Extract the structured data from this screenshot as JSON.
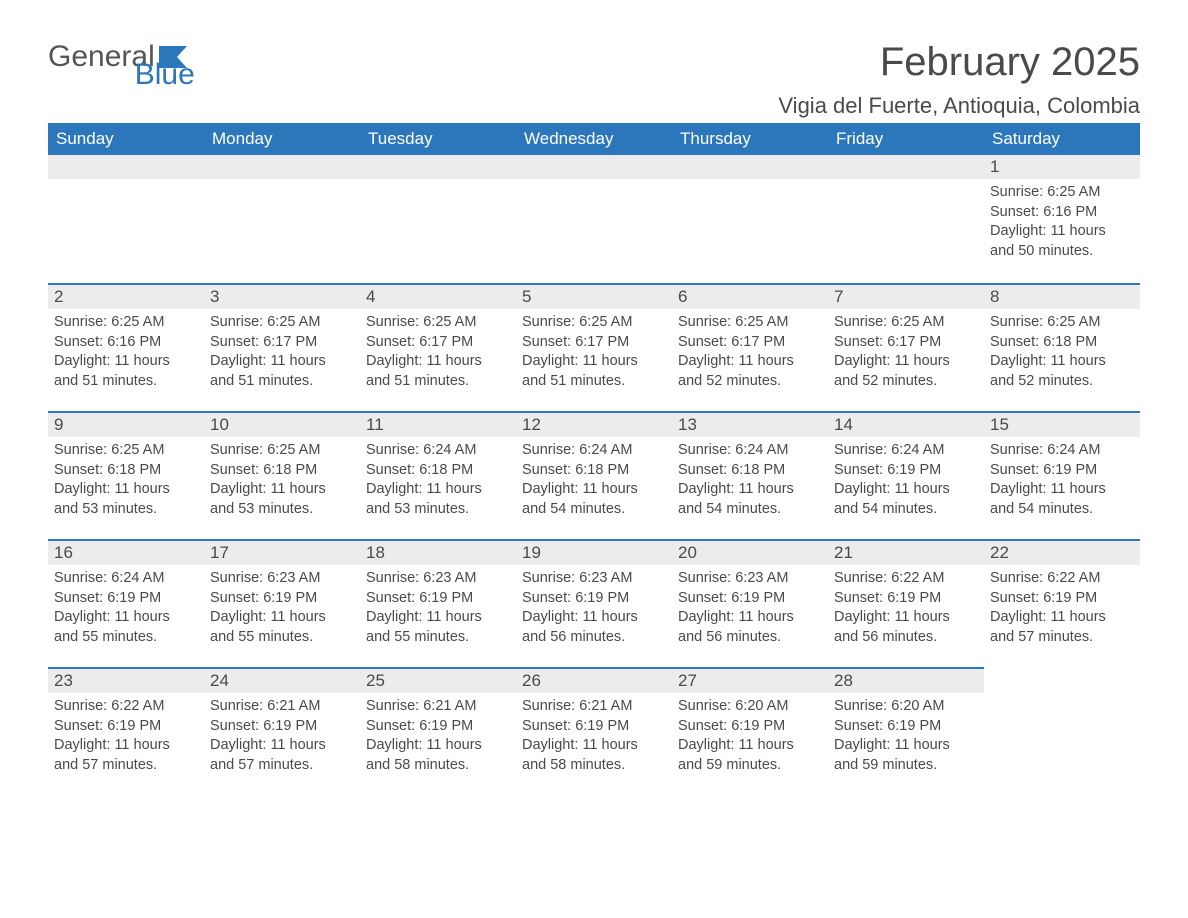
{
  "logo": {
    "text1": "General",
    "text2": "Blue"
  },
  "title": "February 2025",
  "location": "Vigia del Fuerte, Antioquia, Colombia",
  "colors": {
    "accent": "#2c77bb",
    "header_bg": "#2c77bb",
    "header_text": "#ffffff",
    "daynum_bg": "#ececec",
    "text": "#4a4a4a",
    "background": "#ffffff"
  },
  "day_headers": [
    "Sunday",
    "Monday",
    "Tuesday",
    "Wednesday",
    "Thursday",
    "Friday",
    "Saturday"
  ],
  "weeks": [
    [
      {
        "empty": true
      },
      {
        "empty": true
      },
      {
        "empty": true
      },
      {
        "empty": true
      },
      {
        "empty": true
      },
      {
        "empty": true
      },
      {
        "day": "1",
        "sunrise": "Sunrise: 6:25 AM",
        "sunset": "Sunset: 6:16 PM",
        "daylight1": "Daylight: 11 hours",
        "daylight2": "and 50 minutes."
      }
    ],
    [
      {
        "day": "2",
        "sunrise": "Sunrise: 6:25 AM",
        "sunset": "Sunset: 6:16 PM",
        "daylight1": "Daylight: 11 hours",
        "daylight2": "and 51 minutes."
      },
      {
        "day": "3",
        "sunrise": "Sunrise: 6:25 AM",
        "sunset": "Sunset: 6:17 PM",
        "daylight1": "Daylight: 11 hours",
        "daylight2": "and 51 minutes."
      },
      {
        "day": "4",
        "sunrise": "Sunrise: 6:25 AM",
        "sunset": "Sunset: 6:17 PM",
        "daylight1": "Daylight: 11 hours",
        "daylight2": "and 51 minutes."
      },
      {
        "day": "5",
        "sunrise": "Sunrise: 6:25 AM",
        "sunset": "Sunset: 6:17 PM",
        "daylight1": "Daylight: 11 hours",
        "daylight2": "and 51 minutes."
      },
      {
        "day": "6",
        "sunrise": "Sunrise: 6:25 AM",
        "sunset": "Sunset: 6:17 PM",
        "daylight1": "Daylight: 11 hours",
        "daylight2": "and 52 minutes."
      },
      {
        "day": "7",
        "sunrise": "Sunrise: 6:25 AM",
        "sunset": "Sunset: 6:17 PM",
        "daylight1": "Daylight: 11 hours",
        "daylight2": "and 52 minutes."
      },
      {
        "day": "8",
        "sunrise": "Sunrise: 6:25 AM",
        "sunset": "Sunset: 6:18 PM",
        "daylight1": "Daylight: 11 hours",
        "daylight2": "and 52 minutes."
      }
    ],
    [
      {
        "day": "9",
        "sunrise": "Sunrise: 6:25 AM",
        "sunset": "Sunset: 6:18 PM",
        "daylight1": "Daylight: 11 hours",
        "daylight2": "and 53 minutes."
      },
      {
        "day": "10",
        "sunrise": "Sunrise: 6:25 AM",
        "sunset": "Sunset: 6:18 PM",
        "daylight1": "Daylight: 11 hours",
        "daylight2": "and 53 minutes."
      },
      {
        "day": "11",
        "sunrise": "Sunrise: 6:24 AM",
        "sunset": "Sunset: 6:18 PM",
        "daylight1": "Daylight: 11 hours",
        "daylight2": "and 53 minutes."
      },
      {
        "day": "12",
        "sunrise": "Sunrise: 6:24 AM",
        "sunset": "Sunset: 6:18 PM",
        "daylight1": "Daylight: 11 hours",
        "daylight2": "and 54 minutes."
      },
      {
        "day": "13",
        "sunrise": "Sunrise: 6:24 AM",
        "sunset": "Sunset: 6:18 PM",
        "daylight1": "Daylight: 11 hours",
        "daylight2": "and 54 minutes."
      },
      {
        "day": "14",
        "sunrise": "Sunrise: 6:24 AM",
        "sunset": "Sunset: 6:19 PM",
        "daylight1": "Daylight: 11 hours",
        "daylight2": "and 54 minutes."
      },
      {
        "day": "15",
        "sunrise": "Sunrise: 6:24 AM",
        "sunset": "Sunset: 6:19 PM",
        "daylight1": "Daylight: 11 hours",
        "daylight2": "and 54 minutes."
      }
    ],
    [
      {
        "day": "16",
        "sunrise": "Sunrise: 6:24 AM",
        "sunset": "Sunset: 6:19 PM",
        "daylight1": "Daylight: 11 hours",
        "daylight2": "and 55 minutes."
      },
      {
        "day": "17",
        "sunrise": "Sunrise: 6:23 AM",
        "sunset": "Sunset: 6:19 PM",
        "daylight1": "Daylight: 11 hours",
        "daylight2": "and 55 minutes."
      },
      {
        "day": "18",
        "sunrise": "Sunrise: 6:23 AM",
        "sunset": "Sunset: 6:19 PM",
        "daylight1": "Daylight: 11 hours",
        "daylight2": "and 55 minutes."
      },
      {
        "day": "19",
        "sunrise": "Sunrise: 6:23 AM",
        "sunset": "Sunset: 6:19 PM",
        "daylight1": "Daylight: 11 hours",
        "daylight2": "and 56 minutes."
      },
      {
        "day": "20",
        "sunrise": "Sunrise: 6:23 AM",
        "sunset": "Sunset: 6:19 PM",
        "daylight1": "Daylight: 11 hours",
        "daylight2": "and 56 minutes."
      },
      {
        "day": "21",
        "sunrise": "Sunrise: 6:22 AM",
        "sunset": "Sunset: 6:19 PM",
        "daylight1": "Daylight: 11 hours",
        "daylight2": "and 56 minutes."
      },
      {
        "day": "22",
        "sunrise": "Sunrise: 6:22 AM",
        "sunset": "Sunset: 6:19 PM",
        "daylight1": "Daylight: 11 hours",
        "daylight2": "and 57 minutes."
      }
    ],
    [
      {
        "day": "23",
        "sunrise": "Sunrise: 6:22 AM",
        "sunset": "Sunset: 6:19 PM",
        "daylight1": "Daylight: 11 hours",
        "daylight2": "and 57 minutes."
      },
      {
        "day": "24",
        "sunrise": "Sunrise: 6:21 AM",
        "sunset": "Sunset: 6:19 PM",
        "daylight1": "Daylight: 11 hours",
        "daylight2": "and 57 minutes."
      },
      {
        "day": "25",
        "sunrise": "Sunrise: 6:21 AM",
        "sunset": "Sunset: 6:19 PM",
        "daylight1": "Daylight: 11 hours",
        "daylight2": "and 58 minutes."
      },
      {
        "day": "26",
        "sunrise": "Sunrise: 6:21 AM",
        "sunset": "Sunset: 6:19 PM",
        "daylight1": "Daylight: 11 hours",
        "daylight2": "and 58 minutes."
      },
      {
        "day": "27",
        "sunrise": "Sunrise: 6:20 AM",
        "sunset": "Sunset: 6:19 PM",
        "daylight1": "Daylight: 11 hours",
        "daylight2": "and 59 minutes."
      },
      {
        "day": "28",
        "sunrise": "Sunrise: 6:20 AM",
        "sunset": "Sunset: 6:19 PM",
        "daylight1": "Daylight: 11 hours",
        "daylight2": "and 59 minutes."
      },
      {
        "empty": true,
        "trailing": true
      }
    ]
  ]
}
